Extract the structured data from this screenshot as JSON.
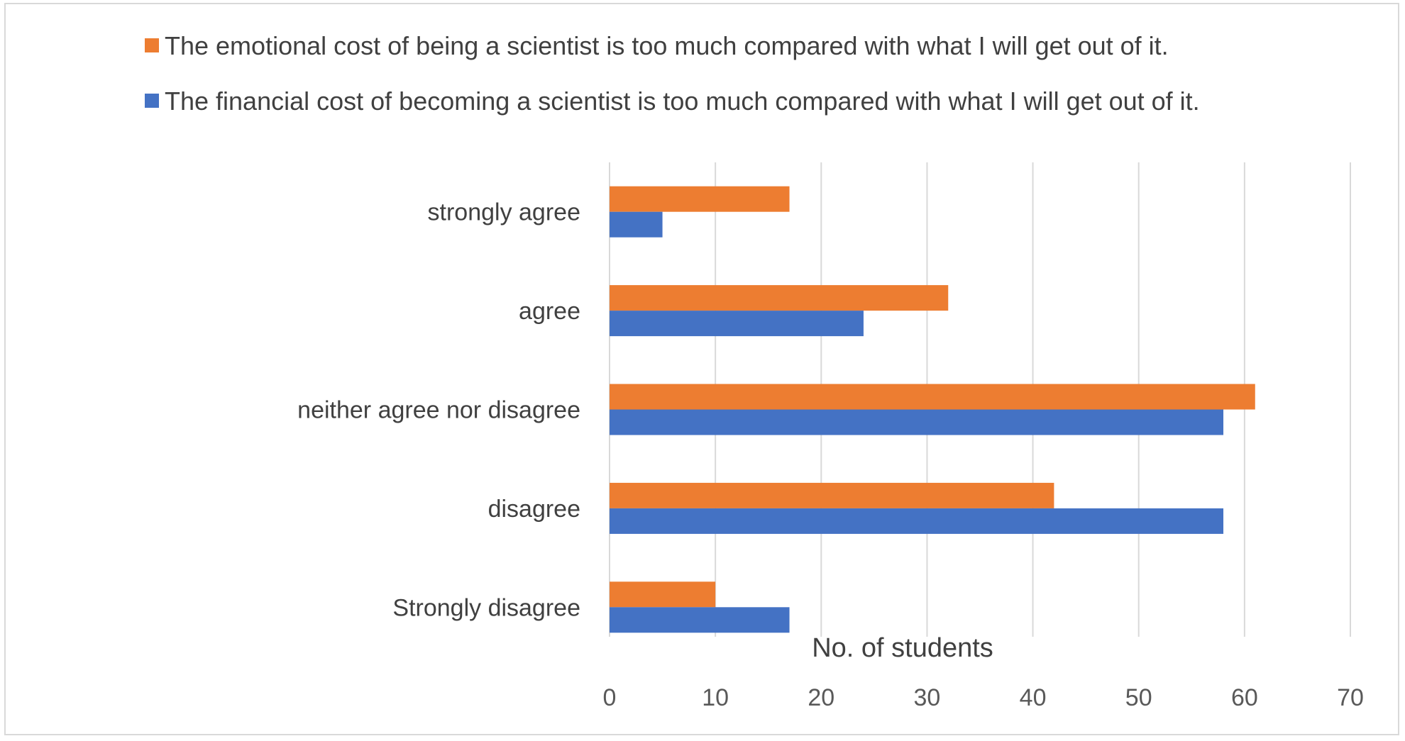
{
  "chart_data": {
    "type": "bar",
    "orientation": "horizontal",
    "title": "",
    "xlabel": "No. of students",
    "ylabel": "",
    "xlim": [
      0,
      70
    ],
    "xticks": [
      0,
      10,
      20,
      30,
      40,
      50,
      60,
      70
    ],
    "categories": [
      "strongly agree",
      "agree",
      "neither agree nor disagree",
      "disagree",
      "Strongly disagree"
    ],
    "series": [
      {
        "name": "The emotional cost of being a scientist is too much compared with what I will get out of it.",
        "color": "#ed7d31",
        "values": [
          17,
          32,
          61,
          42,
          10
        ]
      },
      {
        "name": "The financial cost of becoming a scientist is too much compared with what I will get out of it.",
        "color": "#4472c4",
        "values": [
          5,
          24,
          58,
          58,
          17
        ]
      }
    ],
    "grid": "vertical",
    "legend_position": "top"
  }
}
